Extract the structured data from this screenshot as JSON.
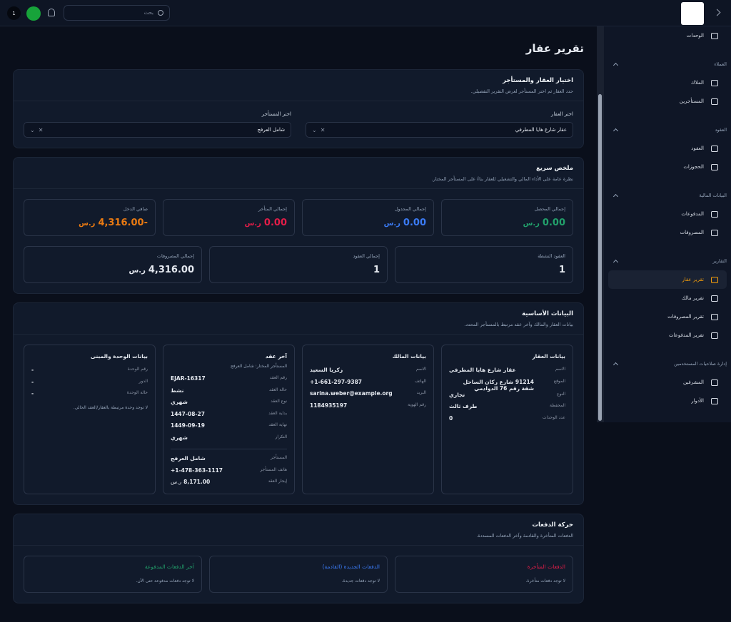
{
  "header": {
    "notification_count": "1",
    "search_placeholder": "بحث"
  },
  "sidebar": {
    "groups": [
      {
        "items": [
          "الوحدات"
        ]
      },
      {
        "title": "العملاء",
        "items": [
          "الملاك",
          "المستأجرين"
        ]
      },
      {
        "title": "العقود",
        "items": [
          "العقود",
          "الحجوزات"
        ]
      },
      {
        "title": "البيانات المالية",
        "items": [
          "المدفوعات",
          "المصروفات"
        ]
      },
      {
        "title": "التقارير",
        "items": [
          "تقرير عقار",
          "تقرير مالك",
          "تقرير المصروفات",
          "تقرير المدفوعات"
        ]
      },
      {
        "title": "إدارة صلاحيات المستخدمين",
        "items": [
          "المشرفين",
          "الأدوار"
        ]
      }
    ],
    "active_item": "تقرير عقار"
  },
  "page_title": "تقرير عقار",
  "selection": {
    "title": "اختيار العقار والمستأجر",
    "subtitle": "حدد العقار ثم اختر المستأجر لعرض التقرير التفصيلي.",
    "fields": [
      {
        "label": "اختر العقار",
        "value": "عقار شارع هايا المطرفي"
      },
      {
        "label": "اختر المستأجر",
        "value": "شامل العرفج"
      }
    ]
  },
  "summary": {
    "title": "ملخص سريع",
    "subtitle": "نظرة عامة على الأداء المالي والتشغيلي للعقار بناءً على المستأجر المختار.",
    "rows": [
      [
        {
          "label": "إجمالي المحصل",
          "value": "0.00",
          "unit": "ر.س",
          "color": "#22a06b"
        },
        {
          "label": "إجمالي المجدول",
          "value": "0.00",
          "unit": "ر.س",
          "color": "#3b7bf5"
        },
        {
          "label": "إجمالي المتأخر",
          "value": "0.00",
          "unit": "ر.س",
          "color": "#e11d48"
        },
        {
          "label": "صافي الدخل",
          "value": "-4,316.00",
          "unit": "ر.س",
          "color": "#ea7a12"
        }
      ],
      [
        {
          "label": "العقود النشطة",
          "value": "1"
        },
        {
          "label": "إجمالي العقود",
          "value": "1"
        },
        {
          "label": "إجمالي المصروفات",
          "value": "4,316.00",
          "unit": "ر.س"
        }
      ]
    ]
  },
  "basic": {
    "title": "البيانات الأساسية",
    "subtitle": "بيانات العقار والمالك وآخر عقد مرتبط بالمستأجر المحدد.",
    "columns": [
      {
        "title": "بيانات العقار",
        "rows": [
          {
            "label": "الاسم",
            "value": "عقار شارع هايا المطرفي"
          },
          {
            "label": "الموقع",
            "value": "91214 شارع ركان الساحل شقة رقم 76 الدوادمي"
          },
          {
            "label": "النوع",
            "value": "تجاري"
          },
          {
            "label": "المحفظة",
            "value": "طرف ثالث"
          },
          {
            "label": "عدد الوحدات",
            "value": "0"
          }
        ]
      },
      {
        "title": "بيانات المالك",
        "rows": [
          {
            "label": "الاسم",
            "value": "زكريا السعيد"
          },
          {
            "label": "الهاتف",
            "value": "+1-661-297-9387"
          },
          {
            "label": "البريد",
            "value": "sarina.weber@example.org"
          },
          {
            "label": "رقم الهوية",
            "value": "1184935197"
          }
        ]
      },
      {
        "title": "آخر عقد",
        "subtitle": "المستأجر المختار: شامل العرفج",
        "rows": [
          {
            "label": "رقم العقد",
            "value": "EJAR-16317"
          },
          {
            "label": "حالة العقد",
            "value": "نشط"
          },
          {
            "label": "نوع العقد",
            "value": "شهري"
          },
          {
            "label": "بداية العقد",
            "value": "1447-08-27"
          },
          {
            "label": "نهاية العقد",
            "value": "1449-09-19"
          },
          {
            "label": "التكرار",
            "value": "شهري"
          }
        ],
        "rows2": [
          {
            "label": "المستأجر",
            "value": "شامل العرفج"
          },
          {
            "label": "هاتف المستأجر",
            "value": "+1-478-363-1117"
          },
          {
            "label": "إيجار العقد",
            "value": "8,171.00",
            "unit": "ر.س"
          }
        ]
      },
      {
        "title": "بيانات الوحدة والمبنى",
        "rows": [
          {
            "label": "رقم الوحدة",
            "value": "-"
          },
          {
            "label": "الدور",
            "value": "-"
          },
          {
            "label": "حالة الوحدة",
            "value": "-"
          }
        ],
        "note": "لا توجد وحدة مرتبطة بالعقار/العقد الحالي."
      }
    ]
  },
  "payments": {
    "title": "حركة الدفعات",
    "subtitle": "الدفعات المتأخرة والقادمة وآخر الدفعات المسددة.",
    "boxes": [
      {
        "title": "الدفعات المتأخرة",
        "color": "#e11d48",
        "message": "لا توجد دفعات متأخرة."
      },
      {
        "title": "الدفعات الجديدة (القادمة)",
        "color": "#3b7bf5",
        "message": "لا توجد دفعات جديدة."
      },
      {
        "title": "آخر الدفعات المدفوعة",
        "color": "#22a06b",
        "message": "لا توجد دفعات مدفوعة حتى الآن."
      }
    ]
  }
}
